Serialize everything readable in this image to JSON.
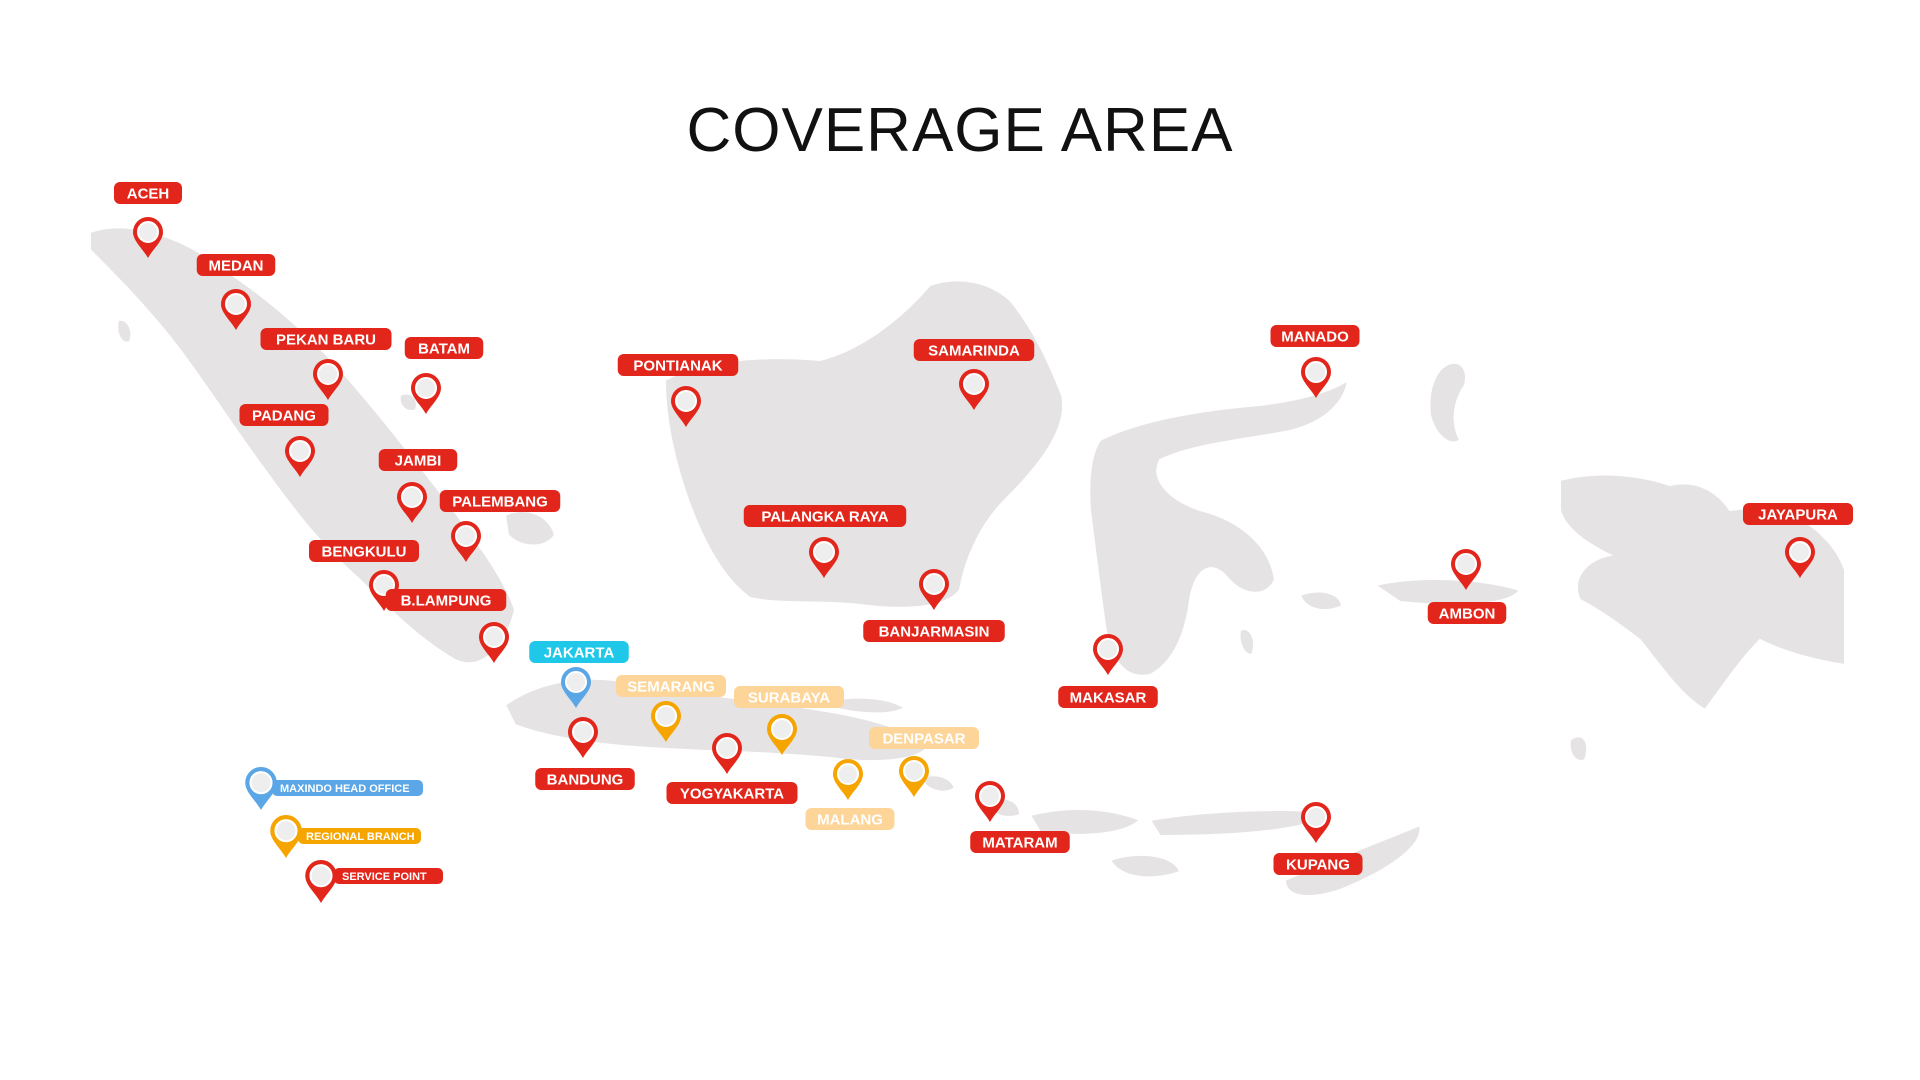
{
  "title": "COVERAGE AREA",
  "colors": {
    "service_point": "#e3261b",
    "regional_branch": "#f5a400",
    "regional_branch_label": "#fdd598",
    "head_office": "#5aa6e6",
    "head_office_label": "#1fc8e8",
    "land": "#e5e3e3"
  },
  "service_points": [
    {
      "name": "ACEH"
    },
    {
      "name": "MEDAN"
    },
    {
      "name": "PEKAN BARU"
    },
    {
      "name": "BATAM"
    },
    {
      "name": "PADANG"
    },
    {
      "name": "JAMBI"
    },
    {
      "name": "PALEMBANG"
    },
    {
      "name": "BENGKULU"
    },
    {
      "name": "B.LAMPUNG"
    },
    {
      "name": "BANDUNG"
    },
    {
      "name": "YOGYAKARTA"
    },
    {
      "name": "PONTIANAK"
    },
    {
      "name": "SAMARINDA"
    },
    {
      "name": "PALANGKA RAYA"
    },
    {
      "name": "BANJARMASIN"
    },
    {
      "name": "MATARAM"
    },
    {
      "name": "MAKASAR"
    },
    {
      "name": "MANADO"
    },
    {
      "name": "AMBON"
    },
    {
      "name": "KUPANG"
    },
    {
      "name": "JAYAPURA"
    }
  ],
  "regional_branches": [
    {
      "name": "SEMARANG"
    },
    {
      "name": "SURABAYA"
    },
    {
      "name": "MALANG"
    },
    {
      "name": "DENPASAR"
    }
  ],
  "head_office": {
    "name": "JAKARTA"
  },
  "legend": {
    "head_office": "MAXINDO HEAD OFFICE",
    "regional_branch": "REGIONAL BRANCH",
    "service_point": "SERVICE POINT"
  }
}
